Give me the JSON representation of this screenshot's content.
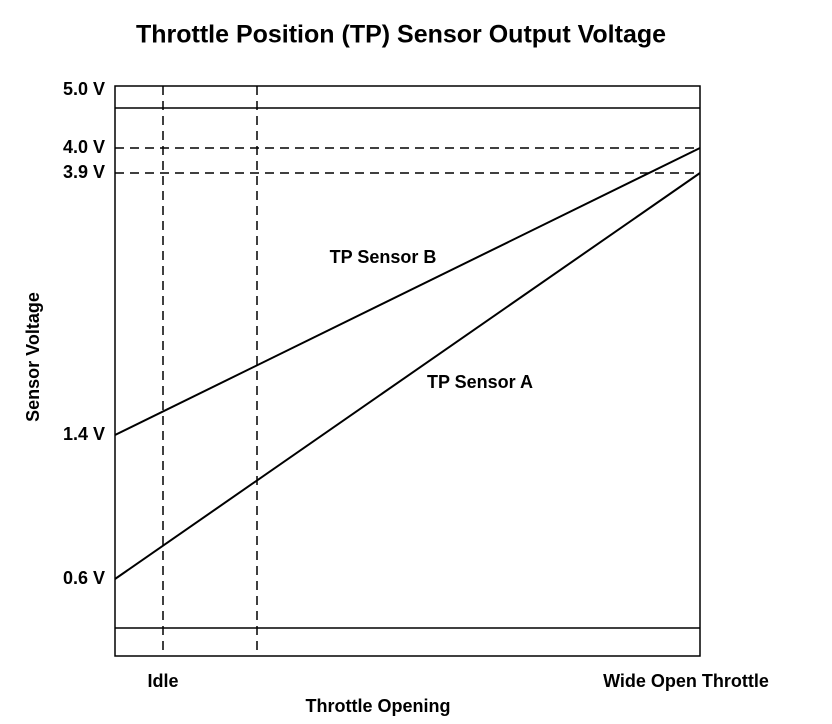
{
  "chart_data": {
    "type": "line",
    "title": "Throttle Position (TP) Sensor Output Voltage",
    "y_label": "Sensor Voltage",
    "x_label": "Throttle Opening",
    "x_tick_labels": [
      "Idle",
      "Wide Open Throttle"
    ],
    "yticks": [
      {
        "value": 0.6,
        "label": "0.6 V"
      },
      {
        "value": 1.4,
        "label": "1.4 V"
      },
      {
        "value": 3.9,
        "label": "3.9 V"
      },
      {
        "value": 4.0,
        "label": "4.0 V"
      },
      {
        "value": 5.0,
        "label": "5.0 V"
      }
    ],
    "series": [
      {
        "name": "TP Sensor A",
        "color": "#000000",
        "values": [
          0.6,
          3.9
        ]
      },
      {
        "name": "TP Sensor B",
        "color": "#000000",
        "values": [
          1.4,
          4.0
        ]
      }
    ]
  }
}
